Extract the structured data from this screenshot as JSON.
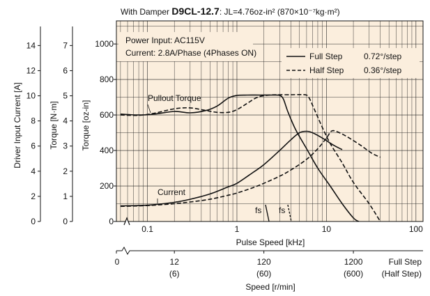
{
  "chart_data": {
    "type": "line",
    "title": {
      "prefix": "With Damper ",
      "model": "D9CL-12.7",
      "suffix": ": JL=4.76oz-in² (870×10⁻⁷kg·m²)"
    },
    "notes": [
      "Power Input: AC115V",
      "Current: 2.8A/Phase (4Phases ON)"
    ],
    "legend": [
      {
        "name": "Full Step",
        "step": "0.72°/step",
        "style": "solid"
      },
      {
        "name": "Half Step",
        "step": "0.36°/step",
        "style": "dashed"
      }
    ],
    "annotations": {
      "pullout": "Pullout Torque",
      "current": "Current",
      "fs": "fs"
    },
    "x_axis": {
      "label": "Pulse Speed [kHz]",
      "scale": "log",
      "range": [
        0.045,
        120
      ],
      "ticks": [
        {
          "value": 0.1,
          "label": "0.1"
        },
        {
          "value": 1,
          "label": "1"
        },
        {
          "value": 10,
          "label": "10"
        },
        {
          "value": 100,
          "label": "100"
        }
      ]
    },
    "speed_axis": {
      "label": "Speed [r/min]",
      "zero": "0",
      "ticks": [
        {
          "value": 0.2,
          "full": "12",
          "half": "(6)"
        },
        {
          "value": 2,
          "full": "120",
          "half": "(60)"
        },
        {
          "value": 20,
          "full": "1200",
          "half": "(600)"
        }
      ],
      "end_labels": [
        "Full Step",
        "(Half Step)"
      ]
    },
    "y_axes": [
      {
        "label": "Torque [oz-in]",
        "ticks": [
          "0",
          "200",
          "400",
          "600",
          "800",
          "1000"
        ]
      },
      {
        "label": "Torque [N·m]",
        "ticks": [
          "0",
          "1",
          "2",
          "3",
          "4",
          "5",
          "6",
          "7"
        ]
      },
      {
        "label": "Driver Input Current [A]",
        "ticks": [
          "0",
          "2",
          "4",
          "6",
          "8",
          "10",
          "12",
          "14"
        ]
      }
    ],
    "ylim_oz_in": [
      0,
      1130
    ],
    "series": [
      {
        "name": "Full Step Pullout Torque",
        "style": "solid",
        "x": [
          0.05,
          0.08,
          0.12,
          0.2,
          0.3,
          0.45,
          0.6,
          0.8,
          1.0,
          1.3,
          1.8,
          2.5,
          3.0,
          3.3,
          3.7,
          4.5,
          6,
          8,
          11,
          15,
          20,
          23
        ],
        "y": [
          605,
          600,
          605,
          620,
          612,
          625,
          650,
          695,
          710,
          712,
          712,
          712,
          710,
          690,
          620,
          520,
          410,
          300,
          200,
          100,
          20,
          0
        ]
      },
      {
        "name": "Half Step Pullout Torque",
        "style": "dashed",
        "x": [
          0.05,
          0.08,
          0.12,
          0.2,
          0.3,
          0.45,
          0.6,
          0.8,
          1.0,
          1.3,
          1.7,
          2.3,
          3.0,
          4.0,
          5.0,
          6.0,
          6.5,
          7.5,
          9,
          11,
          15,
          20,
          30,
          40
        ],
        "y": [
          600,
          598,
          610,
          635,
          640,
          625,
          615,
          615,
          630,
          665,
          700,
          712,
          714,
          714,
          715,
          712,
          690,
          620,
          530,
          440,
          330,
          220,
          100,
          0
        ]
      },
      {
        "name": "Full Step Current",
        "style": "solid",
        "x": [
          0.05,
          0.08,
          0.12,
          0.2,
          0.3,
          0.5,
          0.8,
          1.0,
          1.5,
          2.0,
          3.0,
          4.0,
          5.0,
          6.0,
          7,
          9,
          12,
          15
        ],
        "y": [
          88,
          90,
          95,
          108,
          125,
          155,
          195,
          215,
          275,
          320,
          400,
          460,
          500,
          508,
          500,
          470,
          430,
          405
        ]
      },
      {
        "name": "Half Step Current",
        "style": "dashed",
        "x": [
          0.05,
          0.08,
          0.12,
          0.2,
          0.3,
          0.5,
          0.8,
          1.0,
          1.5,
          2.0,
          3.0,
          4.0,
          6.0,
          8.0,
          10,
          11.5,
          14,
          18,
          24,
          32,
          40
        ],
        "y": [
          85,
          88,
          92,
          100,
          110,
          125,
          148,
          160,
          190,
          215,
          255,
          290,
          350,
          410,
          470,
          510,
          500,
          470,
          430,
          385,
          362
        ]
      }
    ]
  }
}
